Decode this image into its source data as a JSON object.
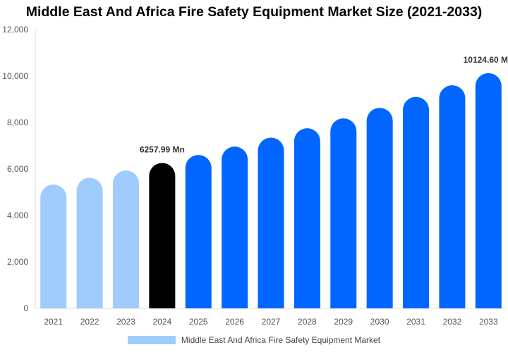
{
  "chart_data": {
    "type": "bar",
    "title": "Middle East And Africa Fire Safety Equipment Market Size (2021-2033)",
    "categories": [
      "2021",
      "2022",
      "2023",
      "2024",
      "2025",
      "2026",
      "2027",
      "2028",
      "2029",
      "2030",
      "2031",
      "2032",
      "2033"
    ],
    "series": [
      {
        "name": "Middle East And Africa Fire Safety Equipment Market",
        "values": [
          5330,
          5623,
          5932,
          6257.99,
          6602,
          6965,
          7348,
          7752,
          8179,
          8629,
          9103,
          9604,
          10124.6
        ]
      }
    ],
    "ylim": [
      0,
      12000
    ],
    "yticks": [
      "0",
      "2,000",
      "4,000",
      "6,000",
      "8,000",
      "10,000",
      "12,000"
    ],
    "data_labels": [
      {
        "index": 3,
        "text": "6257.99 Mn"
      },
      {
        "index": 12,
        "text": "10124.60 M"
      }
    ],
    "colors": {
      "historical": "#9FCCFC",
      "current": "#000000",
      "forecast": "#0066FF",
      "legend": "#9FCCFC"
    },
    "grid": false,
    "legend_position": "bottom"
  }
}
